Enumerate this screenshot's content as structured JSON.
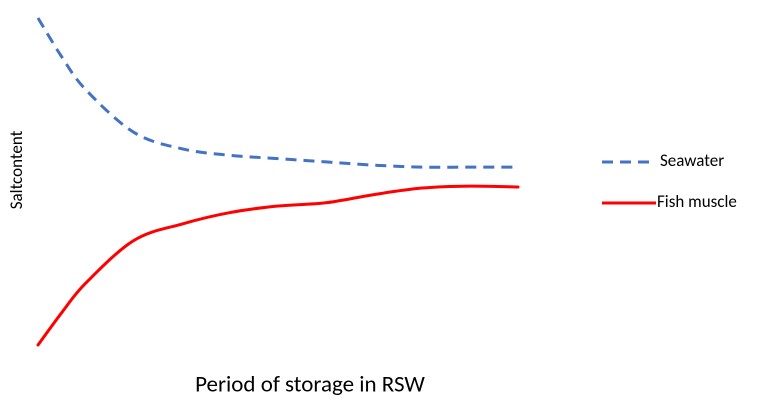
{
  "chart_data": {
    "type": "line",
    "x_label": "Period of storage in RSW",
    "y_label": "Saltcontent",
    "x": [
      0,
      5,
      10,
      20,
      30,
      40,
      50,
      60,
      70,
      80,
      90,
      100
    ],
    "xlim": [
      0,
      100
    ],
    "ylim": [
      0,
      100
    ],
    "legend": "right",
    "series": [
      {
        "name": "Seawater",
        "color": "#4472c4",
        "dashed": true,
        "values": [
          100,
          88,
          78,
          65,
          60,
          58,
          57,
          56,
          55,
          54.4,
          54.4,
          54.4
        ]
      },
      {
        "name": "Fish muscle",
        "color": "#ff0000",
        "dashed": false,
        "values": [
          0,
          10,
          19,
          32,
          37,
          40.5,
          42.5,
          43.5,
          46,
          48,
          48.6,
          48.3
        ]
      }
    ]
  }
}
